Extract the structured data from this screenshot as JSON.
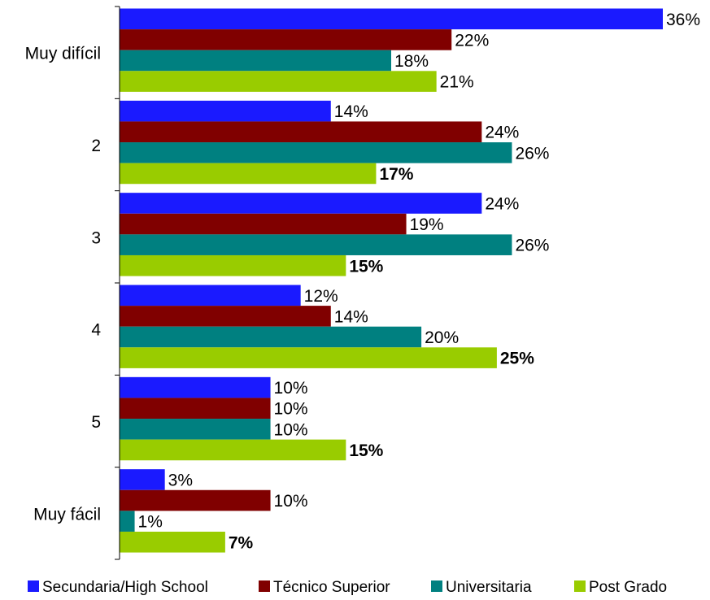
{
  "chart_data": {
    "type": "bar",
    "orientation": "horizontal",
    "categories": [
      "Muy difícil",
      "2",
      "3",
      "4",
      "5",
      "Muy fácil"
    ],
    "series": [
      {
        "name": "Secundaria/High School",
        "color": "#1a1aff",
        "values": [
          36,
          14,
          24,
          12,
          10,
          3
        ],
        "labels": [
          "36%",
          "14%",
          "24%",
          "12%",
          "10%",
          "3%"
        ],
        "bold": [
          false,
          false,
          false,
          false,
          false,
          false
        ]
      },
      {
        "name": "Técnico Superior",
        "color": "#800000",
        "values": [
          22,
          24,
          19,
          14,
          10,
          10
        ],
        "labels": [
          "22%",
          "24%",
          "19%",
          "14%",
          "10%",
          "10%"
        ],
        "bold": [
          false,
          false,
          false,
          false,
          false,
          false
        ]
      },
      {
        "name": "Universitaria",
        "color": "#008080",
        "values": [
          18,
          26,
          26,
          20,
          10,
          1
        ],
        "labels": [
          "18%",
          "26%",
          "26%",
          "20%",
          "10%",
          "1%"
        ],
        "bold": [
          false,
          false,
          false,
          false,
          false,
          false
        ]
      },
      {
        "name": "Post Grado",
        "color": "#99cc00",
        "values": [
          21,
          17,
          15,
          25,
          15,
          7
        ],
        "labels": [
          "21%",
          "17%",
          "15%",
          "25%",
          "15%",
          "7%"
        ],
        "bold": [
          false,
          true,
          true,
          true,
          true,
          true
        ]
      }
    ],
    "xlim": [
      0,
      36
    ],
    "grid": false,
    "legend_position": "bottom"
  }
}
